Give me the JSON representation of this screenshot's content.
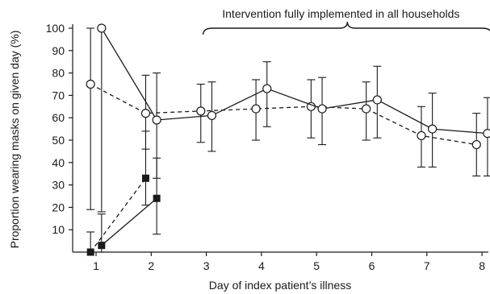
{
  "chart_data": {
    "type": "line",
    "xlabel": "Day of index patient’s illness",
    "ylabel": "Proportion wearing masks on given day (%)",
    "xlim": [
      0.6,
      8.25
    ],
    "ylim": [
      0,
      100
    ],
    "x_ticks": [
      "1",
      "2",
      "3",
      "4",
      "5",
      "6",
      "7",
      "8"
    ],
    "y_ticks": [
      "10",
      "20",
      "30",
      "40",
      "50",
      "60",
      "70",
      "80",
      "90",
      "100"
    ],
    "annotation": "Intervention fully implemented in all households",
    "annotation_x_range": [
      3,
      8
    ],
    "series": [
      {
        "marker": "open-circle",
        "line": "dashed",
        "points": [
          {
            "x": 0.9,
            "y": 75,
            "lo": 19,
            "hi": 100
          },
          {
            "x": 1.9,
            "y": 62,
            "lo": 46,
            "hi": 79
          },
          {
            "x": 2.9,
            "y": 63,
            "lo": 49,
            "hi": 75
          },
          {
            "x": 3.9,
            "y": 64,
            "lo": 50,
            "hi": 77
          },
          {
            "x": 4.9,
            "y": 65,
            "lo": 51,
            "hi": 77
          },
          {
            "x": 5.9,
            "y": 64,
            "lo": 50,
            "hi": 76
          },
          {
            "x": 6.9,
            "y": 52,
            "lo": 38,
            "hi": 65
          },
          {
            "x": 7.9,
            "y": 48,
            "lo": 34,
            "hi": 62
          }
        ]
      },
      {
        "marker": "open-circle",
        "line": "solid",
        "points": [
          {
            "x": 1.1,
            "y": 100,
            "lo": 18,
            "hi": 100
          },
          {
            "x": 2.1,
            "y": 59,
            "lo": 33,
            "hi": 80
          },
          {
            "x": 3.1,
            "y": 61,
            "lo": 45,
            "hi": 76
          },
          {
            "x": 4.1,
            "y": 73,
            "lo": 56,
            "hi": 85
          },
          {
            "x": 5.1,
            "y": 64,
            "lo": 48,
            "hi": 78
          },
          {
            "x": 6.1,
            "y": 68,
            "lo": 51,
            "hi": 83
          },
          {
            "x": 7.1,
            "y": 55,
            "lo": 38,
            "hi": 71
          },
          {
            "x": 8.1,
            "y": 53,
            "lo": 34,
            "hi": 69
          }
        ]
      },
      {
        "marker": "filled-square",
        "line": "dashed",
        "points": [
          {
            "x": 0.9,
            "y": 0,
            "lo": 0,
            "hi": 9
          },
          {
            "x": 1.9,
            "y": 33,
            "lo": 21,
            "hi": 54
          }
        ]
      },
      {
        "marker": "filled-square",
        "line": "solid",
        "points": [
          {
            "x": 1.1,
            "y": 3,
            "lo": 0,
            "hi": 17
          },
          {
            "x": 2.1,
            "y": 24,
            "lo": 8,
            "hi": 42
          }
        ]
      }
    ]
  }
}
